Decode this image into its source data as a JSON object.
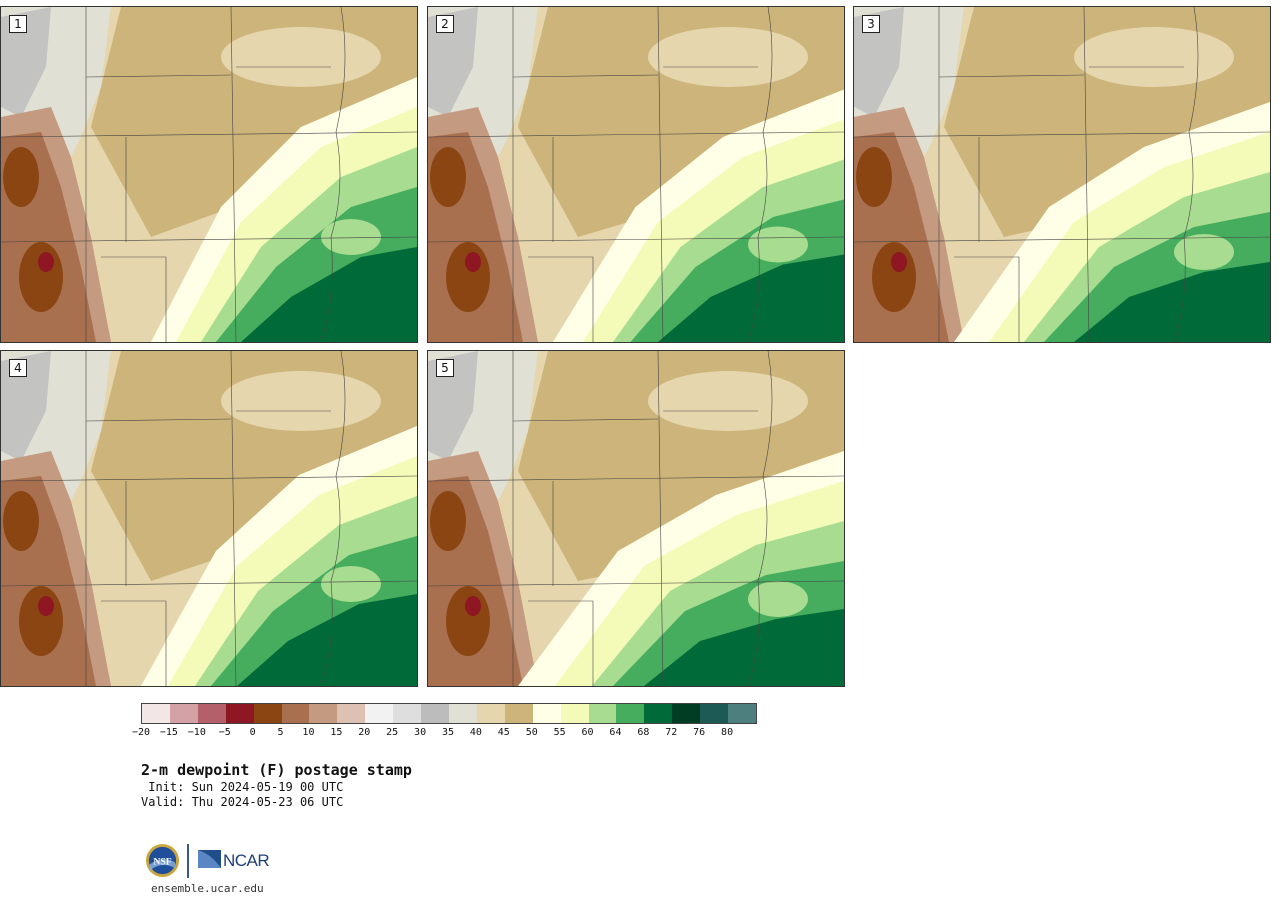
{
  "figure": {
    "title": "2-m dewpoint (F) postage stamp",
    "init": " Init: Sun 2024-05-19 00 UTC",
    "valid": "Valid: Thu 2024-05-23 06 UTC",
    "site": "ensemble.ucar.edu",
    "logo_text": "NCAR"
  },
  "panels": [
    {
      "label": "1"
    },
    {
      "label": "2"
    },
    {
      "label": "3"
    },
    {
      "label": "4"
    },
    {
      "label": "5"
    }
  ],
  "colorbar": {
    "colors": [
      "#f3e6e6",
      "#d3a1a6",
      "#b3606a",
      "#8e1723",
      "#8b4513",
      "#a9704f",
      "#c49a80",
      "#ddc2b3",
      "#f2f2f2",
      "#dedede",
      "#bcbcbc",
      "#e0e0d4",
      "#e6d6ad",
      "#cdb47a",
      "#ffffe8",
      "#f4fbb8",
      "#a8dc90",
      "#46ad5e",
      "#006b38",
      "#003d22",
      "#1d5a55",
      "#4e7f7f"
    ],
    "tick_labels": [
      "−20",
      "−15",
      "−10",
      "−5",
      "0",
      "5",
      "10",
      "15",
      "20",
      "25",
      "30",
      "35",
      "40",
      "45",
      "50",
      "55",
      "60",
      "64",
      "68",
      "72",
      "76",
      "80"
    ]
  }
}
